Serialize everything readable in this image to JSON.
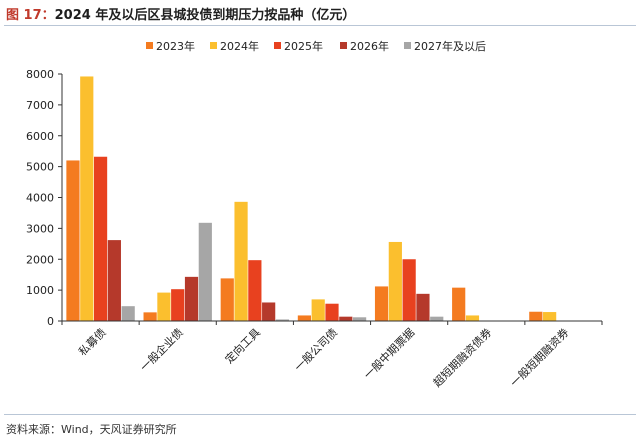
{
  "header": {
    "figure_label": "图 17：",
    "title": "2024 年及以后区县城投债到期压力按品种（亿元）"
  },
  "footer": {
    "source": "资料来源：Wind，天风证券研究所"
  },
  "colors": {
    "rule": "#b9c6d6",
    "figure_label": "#c0392b"
  },
  "chart_data": {
    "type": "bar",
    "title": "",
    "xlabel": "",
    "ylabel": "",
    "ylim": [
      0,
      8000
    ],
    "yticks": [
      0,
      1000,
      2000,
      3000,
      4000,
      5000,
      6000,
      7000,
      8000
    ],
    "grid": false,
    "legend_position": "top",
    "categories": [
      "私募债",
      "一般企业债",
      "定向工具",
      "一般公司债",
      "一般中期票据",
      "超短期融资债券",
      "一般短期融资券"
    ],
    "series": [
      {
        "name": "2023年",
        "color": "#f47b20",
        "values": [
          5200,
          280,
          1380,
          180,
          1120,
          1080,
          300
        ]
      },
      {
        "name": "2024年",
        "color": "#fbbf2e",
        "values": [
          7920,
          920,
          3860,
          700,
          2560,
          180,
          290
        ]
      },
      {
        "name": "2025年",
        "color": "#e8411f",
        "values": [
          5320,
          1030,
          1970,
          560,
          2000,
          0,
          0
        ]
      },
      {
        "name": "2026年",
        "color": "#b5392b",
        "values": [
          2620,
          1430,
          600,
          140,
          880,
          0,
          0
        ]
      },
      {
        "name": "2027年及以后",
        "color": "#a6a6a6",
        "values": [
          480,
          3180,
          50,
          120,
          140,
          0,
          0
        ]
      }
    ]
  }
}
